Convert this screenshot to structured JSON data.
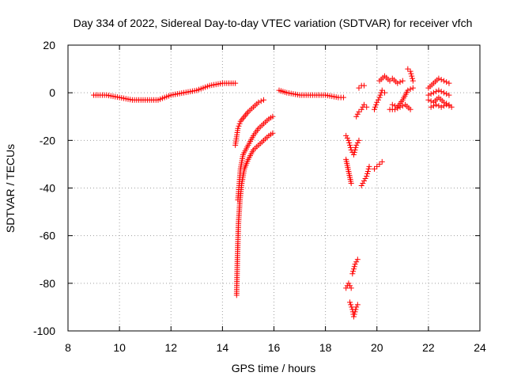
{
  "chart_data": {
    "type": "scatter",
    "title": "Day 334 of 2022, Sidereal Day-to-day VTEC variation (SDTVAR) for receiver vfch",
    "xlabel": "GPS time / hours",
    "ylabel": "SDTVAR / TECUs",
    "xlim": [
      8,
      24
    ],
    "ylim": [
      -100,
      20
    ],
    "xticks": [
      "8",
      "10",
      "12",
      "14",
      "16",
      "18",
      "20",
      "22",
      "24"
    ],
    "yticks": [
      "20",
      "0",
      "-20",
      "-40",
      "-60",
      "-80",
      "-100"
    ],
    "grid": true,
    "marker": "+",
    "color": "#ff0000",
    "series": [
      {
        "name": "SDTVAR",
        "segments": [
          {
            "x": [
              9.0,
              9.5,
              10.0,
              10.5,
              11.0,
              11.5,
              12.0,
              12.5,
              13.0,
              13.5,
              14.0,
              14.5
            ],
            "y": [
              -1,
              -1,
              -2,
              -3,
              -3,
              -3,
              -1,
              0,
              1,
              3,
              4,
              4
            ]
          },
          {
            "x": [
              14.55,
              14.58,
              14.62,
              14.68,
              14.75,
              14.85,
              15.0,
              15.2,
              15.4,
              15.6,
              15.8,
              15.95
            ],
            "y": [
              -85,
              -70,
              -55,
              -45,
              -38,
              -32,
              -28,
              -24,
              -22,
              -20,
              -18,
              -17
            ]
          },
          {
            "x": [
              14.6,
              14.7,
              14.8,
              15.0,
              15.2,
              15.4,
              15.6,
              15.8,
              15.95
            ],
            "y": [
              -45,
              -32,
              -26,
              -22,
              -18,
              -15,
              -13,
              -11,
              -10
            ]
          },
          {
            "x": [
              14.5,
              14.6,
              14.7,
              14.85,
              15.0,
              15.2,
              15.4,
              15.6
            ],
            "y": [
              -22,
              -15,
              -12,
              -10,
              -8,
              -6,
              -4,
              -3
            ]
          },
          {
            "x": [
              16.2,
              16.5,
              17.0,
              17.5,
              18.0,
              18.5,
              18.7
            ],
            "y": [
              1,
              0,
              -1,
              -1,
              -1,
              -2,
              -2
            ]
          },
          {
            "x": [
              18.8,
              18.9,
              19.0,
              19.1,
              19.2,
              19.3
            ],
            "y": [
              -18,
              -20,
              -24,
              -26,
              -22,
              -20
            ]
          },
          {
            "x": [
              18.8,
              18.9,
              19.0
            ],
            "y": [
              -28,
              -33,
              -38
            ]
          },
          {
            "x": [
              18.8,
              18.9,
              19.0
            ],
            "y": [
              -82,
              -80,
              -82
            ]
          },
          {
            "x": [
              19.05,
              19.1,
              19.15,
              19.2,
              19.25
            ],
            "y": [
              -76,
              -74,
              -72,
              -71,
              -70
            ]
          },
          {
            "x": [
              18.95,
              19.05,
              19.1,
              19.15,
              19.2,
              19.25
            ],
            "y": [
              -88,
              -91,
              -94,
              -92,
              -90,
              -89
            ]
          },
          {
            "x": [
              19.4,
              19.5,
              19.6,
              19.7
            ],
            "y": [
              -39,
              -37,
              -35,
              -31
            ]
          },
          {
            "x": [
              19.2,
              19.3,
              19.4,
              19.5,
              19.6
            ],
            "y": [
              -10,
              -8,
              -7,
              -5,
              -6
            ]
          },
          {
            "x": [
              19.3,
              19.4,
              19.5
            ],
            "y": [
              2,
              3,
              3
            ]
          },
          {
            "x": [
              19.9,
              20.0,
              20.1,
              20.2
            ],
            "y": [
              -32,
              -31,
              -30,
              -29
            ]
          },
          {
            "x": [
              19.9,
              20.0,
              20.1,
              20.2,
              20.3
            ],
            "y": [
              -7,
              -4,
              -2,
              1,
              0
            ]
          },
          {
            "x": [
              20.1,
              20.3,
              20.5,
              20.6,
              20.8,
              21.0
            ],
            "y": [
              5,
              7,
              5,
              6,
              4,
              5
            ]
          },
          {
            "x": [
              20.6,
              20.8,
              21.0,
              21.2,
              21.4
            ],
            "y": [
              -5,
              -6,
              -3,
              1,
              2
            ]
          },
          {
            "x": [
              20.5,
              20.7,
              20.9,
              21.1,
              21.3
            ],
            "y": [
              -7,
              -7,
              -6,
              -5,
              -7
            ]
          },
          {
            "x": [
              21.2,
              21.3,
              21.4
            ],
            "y": [
              10,
              9,
              5
            ]
          },
          {
            "x": [
              22.0,
              22.2,
              22.4,
              22.6,
              22.8
            ],
            "y": [
              2,
              4,
              6,
              5,
              4
            ]
          },
          {
            "x": [
              22.0,
              22.2,
              22.4,
              22.6,
              22.8
            ],
            "y": [
              -1,
              0,
              1,
              0,
              -1
            ]
          },
          {
            "x": [
              22.0,
              22.2,
              22.4,
              22.6,
              22.8
            ],
            "y": [
              -3,
              -4,
              -2,
              -4,
              -5
            ]
          },
          {
            "x": [
              22.1,
              22.3,
              22.5,
              22.7,
              22.9
            ],
            "y": [
              -6,
              -5,
              -6,
              -5,
              -6
            ]
          }
        ]
      }
    ]
  }
}
